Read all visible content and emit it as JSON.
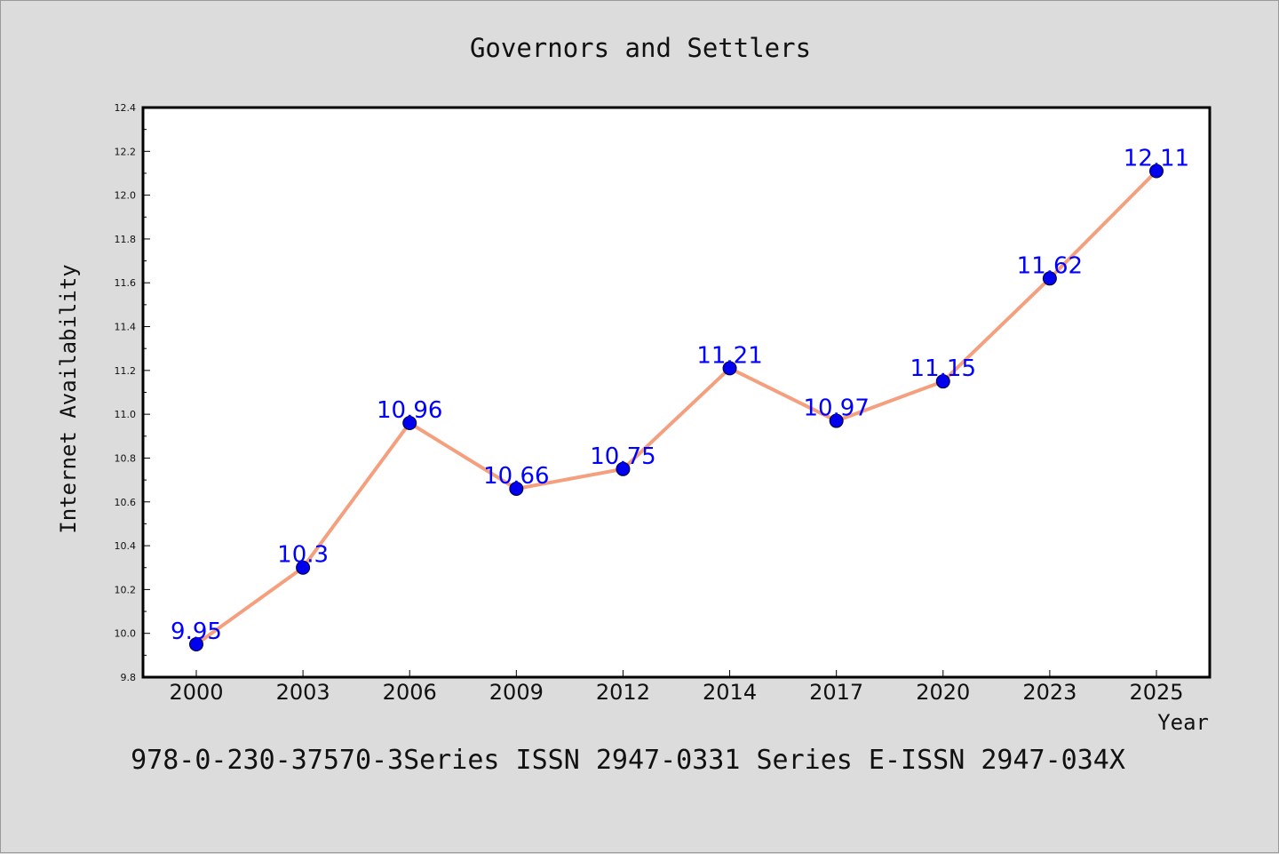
{
  "chart_data": {
    "type": "line",
    "title": "Governors and Settlers",
    "xlabel": "Year",
    "ylabel": "Internet Availability",
    "categories": [
      "2000",
      "2003",
      "2006",
      "2009",
      "2012",
      "2014",
      "2017",
      "2020",
      "2023",
      "2025"
    ],
    "series": [
      {
        "values": [
          9.95,
          10.3,
          10.96,
          10.66,
          10.75,
          11.21,
          10.97,
          11.15,
          11.62,
          12.11
        ],
        "data_labels": [
          "9.95",
          "10.3",
          "10.96",
          "10.66",
          "10.75",
          "11.21",
          "10.97",
          "11.15",
          "11.62",
          "12.11"
        ],
        "line_color": "#f4a07e",
        "marker_color": "#0000ee"
      }
    ],
    "ylim": [
      9.8,
      12.4
    ],
    "yticks": [
      "9.8",
      "10.0",
      "10.2",
      "10.4",
      "10.6",
      "10.8",
      "11.0",
      "11.2",
      "11.4",
      "11.6",
      "11.8",
      "12.0",
      "12.2",
      "12.4"
    ],
    "grid": false,
    "label_color": "#0000ff",
    "background_color": "#dcdcdc",
    "plot_background_color": "#ffffff"
  },
  "footer": {
    "text": "978-0-230-37570-3Series ISSN 2947-0331 Series E-ISSN 2947-034X"
  }
}
